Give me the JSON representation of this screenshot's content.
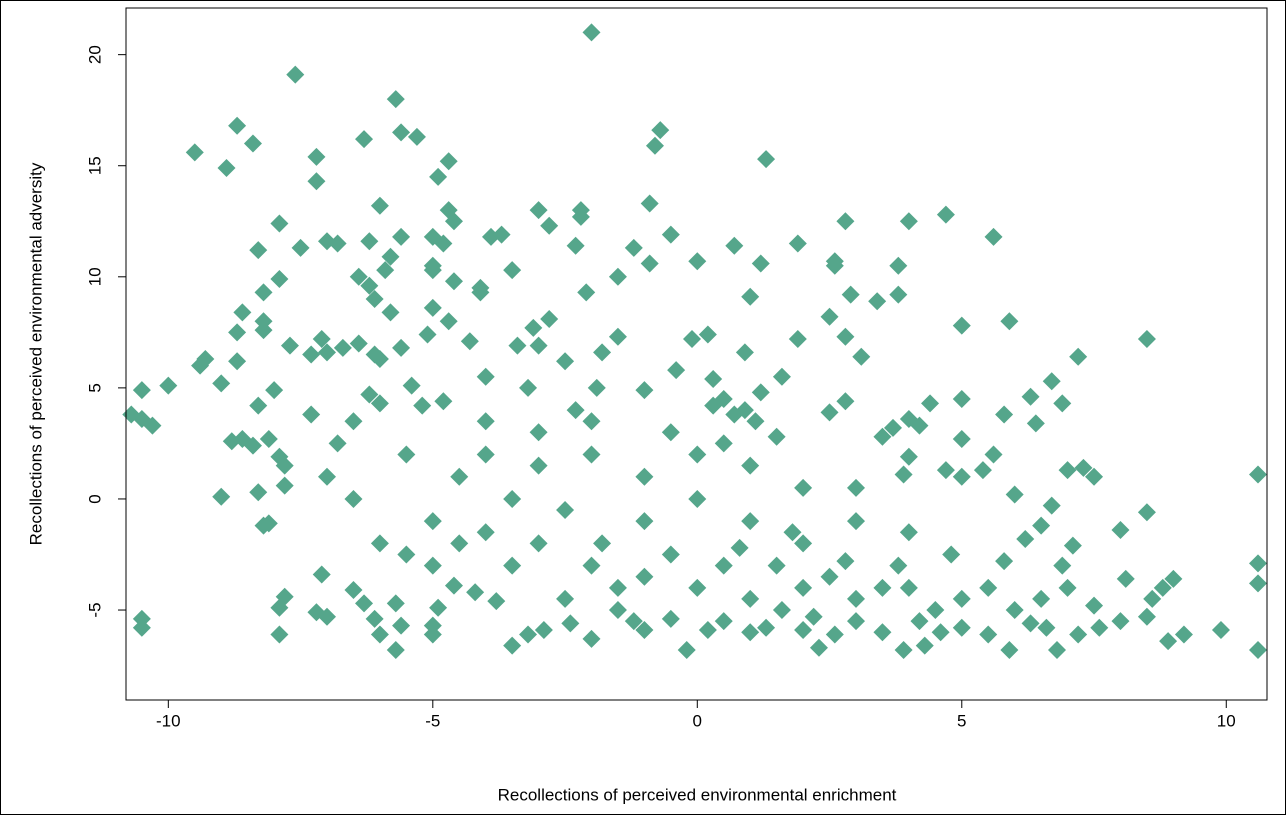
{
  "chart_data": {
    "type": "scatter",
    "x_label": "Recollections of perceived environmental enrichment",
    "y_label": "Recollections of perceived environmental adversity",
    "color": "#55a68b",
    "xlim": [
      -10.8,
      10.77
    ],
    "ylim": [
      -9.05,
      22.1
    ],
    "xticks": [
      -10,
      -5,
      0,
      5,
      10
    ],
    "yticks": [
      -5,
      0,
      5,
      10,
      15,
      20
    ],
    "x": [
      -2.0,
      -7.6,
      -5.7,
      -8.7,
      -8.4,
      -9.5,
      -8.9,
      -7.2,
      -7.2,
      -6.3,
      -5.6,
      -5.3,
      -4.7,
      -4.9,
      -0.7,
      -0.8,
      1.3,
      -0.9,
      -3.0,
      -2.2,
      -2.2,
      -2.8,
      -4.7,
      -4.6,
      -6.0,
      -7.9,
      -8.3,
      -7.0,
      -6.8,
      -7.5,
      -6.2,
      -5.6,
      -5.0,
      -4.8,
      -3.9,
      -3.7,
      -2.3,
      -0.5,
      -1.2,
      0.7,
      1.9,
      2.8,
      4.0,
      4.7,
      5.6,
      0.0,
      -1.5,
      -0.9,
      1.2,
      2.6,
      2.6,
      3.8,
      -3.5,
      -5.0,
      -5.0,
      -5.8,
      -5.9,
      -6.4,
      -7.9,
      -8.2,
      -6.2,
      -6.1,
      -4.6,
      -4.1,
      -4.1,
      -2.1,
      1.0,
      2.9,
      3.4,
      3.8,
      -8.6,
      -8.7,
      -8.2,
      -8.2,
      -5.8,
      -5.0,
      -4.7,
      -2.8,
      -3.1,
      2.5,
      5.0,
      5.9,
      8.5,
      -7.1,
      -6.4,
      -6.1,
      -6.0,
      -7.0,
      -7.3,
      -6.7,
      -9.3,
      -9.4,
      -8.7,
      -7.7,
      -10.0,
      -10.5,
      -10.7,
      -10.5,
      -10.3,
      -9.0,
      -8.8,
      -8.6,
      -8.4,
      -8.3,
      -8.0,
      -7.9,
      -7.8,
      -7.8,
      -8.1,
      -8.3,
      -9.0,
      -8.1,
      -8.2,
      -7.8,
      -7.9,
      -7.9,
      -10.5,
      -10.5,
      -7.2,
      -7.0,
      -7.1,
      -6.5,
      -6.3,
      -6.1,
      -6.0,
      -5.7,
      -5.6,
      -5.7,
      -5.0,
      -5.0,
      -4.9,
      -4.6,
      -3.8,
      -3.5,
      -3.2,
      -2.9,
      -2.4,
      -2.0,
      -1.5,
      -1.0,
      -0.5,
      -0.2,
      0.2,
      0.5,
      1.0,
      1.3,
      1.6,
      2.0,
      2.3,
      2.6,
      3.0,
      3.5,
      3.9,
      4.3,
      4.6,
      5.0,
      5.5,
      5.9,
      6.3,
      6.8,
      7.2,
      7.6,
      8.0,
      8.5,
      8.9,
      9.2,
      9.9,
      10.6,
      10.6,
      10.6,
      10.6,
      9.0,
      8.8,
      8.6,
      8.1,
      8.0,
      8.5,
      7.5,
      7.3,
      7.0,
      7.1,
      6.9,
      6.5,
      6.7,
      6.0,
      5.6,
      5.4,
      5.0,
      5.0,
      4.7,
      4.0,
      4.2,
      4.4,
      4.0,
      3.5,
      3.9,
      5.8,
      6.3,
      6.4,
      6.7,
      6.9,
      7.2,
      5.0,
      3.1,
      2.8,
      1.9,
      0.9,
      -0.1,
      0.2,
      -1.5,
      -1.8,
      -2.5,
      -3.4,
      -3.0,
      -4.3,
      -5.1,
      -5.6,
      -6.2,
      -6.0,
      -5.4,
      -5.2,
      -4.8,
      -4.0,
      -3.2,
      -2.3,
      -1.9,
      -1.0,
      -0.4,
      0.3,
      0.5,
      0.9,
      1.2,
      1.6,
      2.5,
      3.7,
      2.8,
      -5.0,
      -4.5,
      -4.0,
      -3.5,
      -3.0,
      -2.5,
      -2.0,
      -1.5,
      -1.0,
      -0.5,
      0.0,
      0.5,
      1.0,
      1.5,
      2.0,
      2.5,
      3.0,
      3.5,
      4.0,
      4.5,
      5.0,
      5.5,
      6.0,
      6.5,
      7.0,
      7.5,
      -6.0,
      -5.5,
      -4.5,
      -4.0,
      -3.0,
      -2.0,
      -1.0,
      0.0,
      1.0,
      2.0,
      3.0,
      4.0,
      -1.0,
      0.0,
      1.0,
      2.0,
      3.0,
      -6.5,
      -7.0,
      -6.8,
      -5.0,
      -3.5,
      -2.5,
      -1.8,
      0.8,
      1.8,
      2.8,
      3.8,
      4.8,
      5.8,
      6.2,
      -0.5,
      0.5,
      1.5,
      -2.0,
      -3.0,
      -4.0,
      -5.5,
      -6.5,
      -7.3,
      -4.2,
      -1.2,
      2.2,
      4.2,
      6.6,
      0.7,
      0.3,
      1.1
    ],
    "values": [
      21,
      19.1,
      18,
      16.8,
      16,
      15.6,
      14.9,
      15.4,
      14.3,
      16.2,
      16.5,
      16.3,
      15.2,
      14.5,
      16.6,
      15.9,
      15.3,
      13.3,
      13.0,
      13.0,
      12.7,
      12.3,
      13.0,
      12.5,
      13.2,
      12.4,
      11.2,
      11.6,
      11.5,
      11.3,
      11.6,
      11.8,
      11.8,
      11.5,
      11.8,
      11.9,
      11.4,
      11.9,
      11.3,
      11.4,
      11.5,
      12.5,
      12.5,
      12.8,
      11.8,
      10.7,
      10.0,
      10.6,
      10.6,
      10.5,
      10.7,
      10.5,
      10.3,
      10.5,
      10.3,
      10.9,
      10.3,
      10.0,
      9.9,
      9.3,
      9.6,
      9.0,
      9.8,
      9.5,
      9.3,
      9.3,
      9.1,
      9.2,
      8.9,
      9.2,
      8.4,
      7.5,
      8.0,
      7.6,
      8.4,
      8.6,
      8.0,
      8.1,
      7.7,
      8.2,
      7.8,
      8.0,
      7.2,
      7.2,
      7.0,
      6.5,
      6.3,
      6.6,
      6.5,
      6.8,
      6.3,
      6.0,
      6.2,
      6.9,
      5.1,
      4.9,
      3.8,
      3.6,
      3.3,
      5.2,
      2.6,
      2.7,
      2.4,
      4.2,
      4.9,
      1.9,
      1.5,
      0.6,
      2.7,
      0.3,
      0.1,
      -1.1,
      -1.2,
      -4.4,
      -4.9,
      -6.1,
      -5.4,
      -5.8,
      -5.1,
      -5.3,
      -3.4,
      -4.1,
      -4.7,
      -5.4,
      -6.1,
      -6.8,
      -5.7,
      -4.7,
      -5.7,
      -6.1,
      -4.9,
      -3.9,
      -4.6,
      -6.6,
      -6.1,
      -5.9,
      -5.6,
      -6.3,
      -5.0,
      -5.9,
      -5.4,
      -6.8,
      -5.9,
      -5.5,
      -6.0,
      -5.8,
      -5.0,
      -5.9,
      -6.7,
      -6.1,
      -5.5,
      -6.0,
      -6.8,
      -6.6,
      -6.0,
      -5.8,
      -6.1,
      -6.8,
      -5.6,
      -6.8,
      -6.1,
      -5.8,
      -5.5,
      -5.3,
      -6.4,
      -6.1,
      -5.9,
      -6.8,
      -3.8,
      -2.9,
      1.1,
      -3.6,
      -4.0,
      -4.5,
      -3.6,
      -1.4,
      -0.6,
      1.0,
      1.4,
      1.3,
      -2.1,
      -3.0,
      -1.2,
      -0.3,
      0.2,
      2.0,
      1.3,
      2.7,
      1.0,
      1.3,
      1.9,
      3.3,
      4.3,
      3.6,
      2.8,
      1.1,
      3.8,
      4.6,
      3.4,
      5.3,
      4.3,
      6.4,
      4.5,
      6.4,
      7.3,
      7.2,
      6.6,
      7.2,
      7.4,
      7.3,
      6.6,
      6.2,
      6.9,
      6.9,
      7.1,
      7.4,
      6.8,
      4.7,
      4.3,
      5.1,
      4.2,
      4.4,
      5.5,
      5.0,
      4.0,
      5.0,
      4.9,
      5.8,
      5.4,
      4.5,
      4.0,
      4.8,
      5.5,
      3.9,
      3.2,
      4.4,
      -1,
      -2,
      -1.5,
      0,
      -2,
      -0.5,
      -3,
      -4,
      -3.5,
      -2.5,
      -4,
      -3,
      -4.5,
      -3,
      -4,
      -3.5,
      -4.5,
      -4,
      -4,
      -5,
      -4.5,
      -4,
      -5,
      -4.5,
      -4,
      -4.8,
      -2,
      -2.5,
      1,
      2,
      1.5,
      2,
      1,
      2,
      1.5,
      0.5,
      -1,
      -1.5,
      -1,
      0,
      -1,
      -2,
      0.5,
      0,
      1,
      2.5,
      -3,
      -3,
      -4.5,
      -2,
      -2.2,
      -1.5,
      -2.8,
      -3,
      -2.5,
      -2.8,
      -1.8,
      3,
      2.5,
      2.8,
      3.5,
      3,
      3.5,
      2,
      3.5,
      3.8,
      -4.2,
      -5.5,
      -5.3,
      -5.5,
      -5.8,
      3.8,
      4.2,
      3.5
    ]
  }
}
